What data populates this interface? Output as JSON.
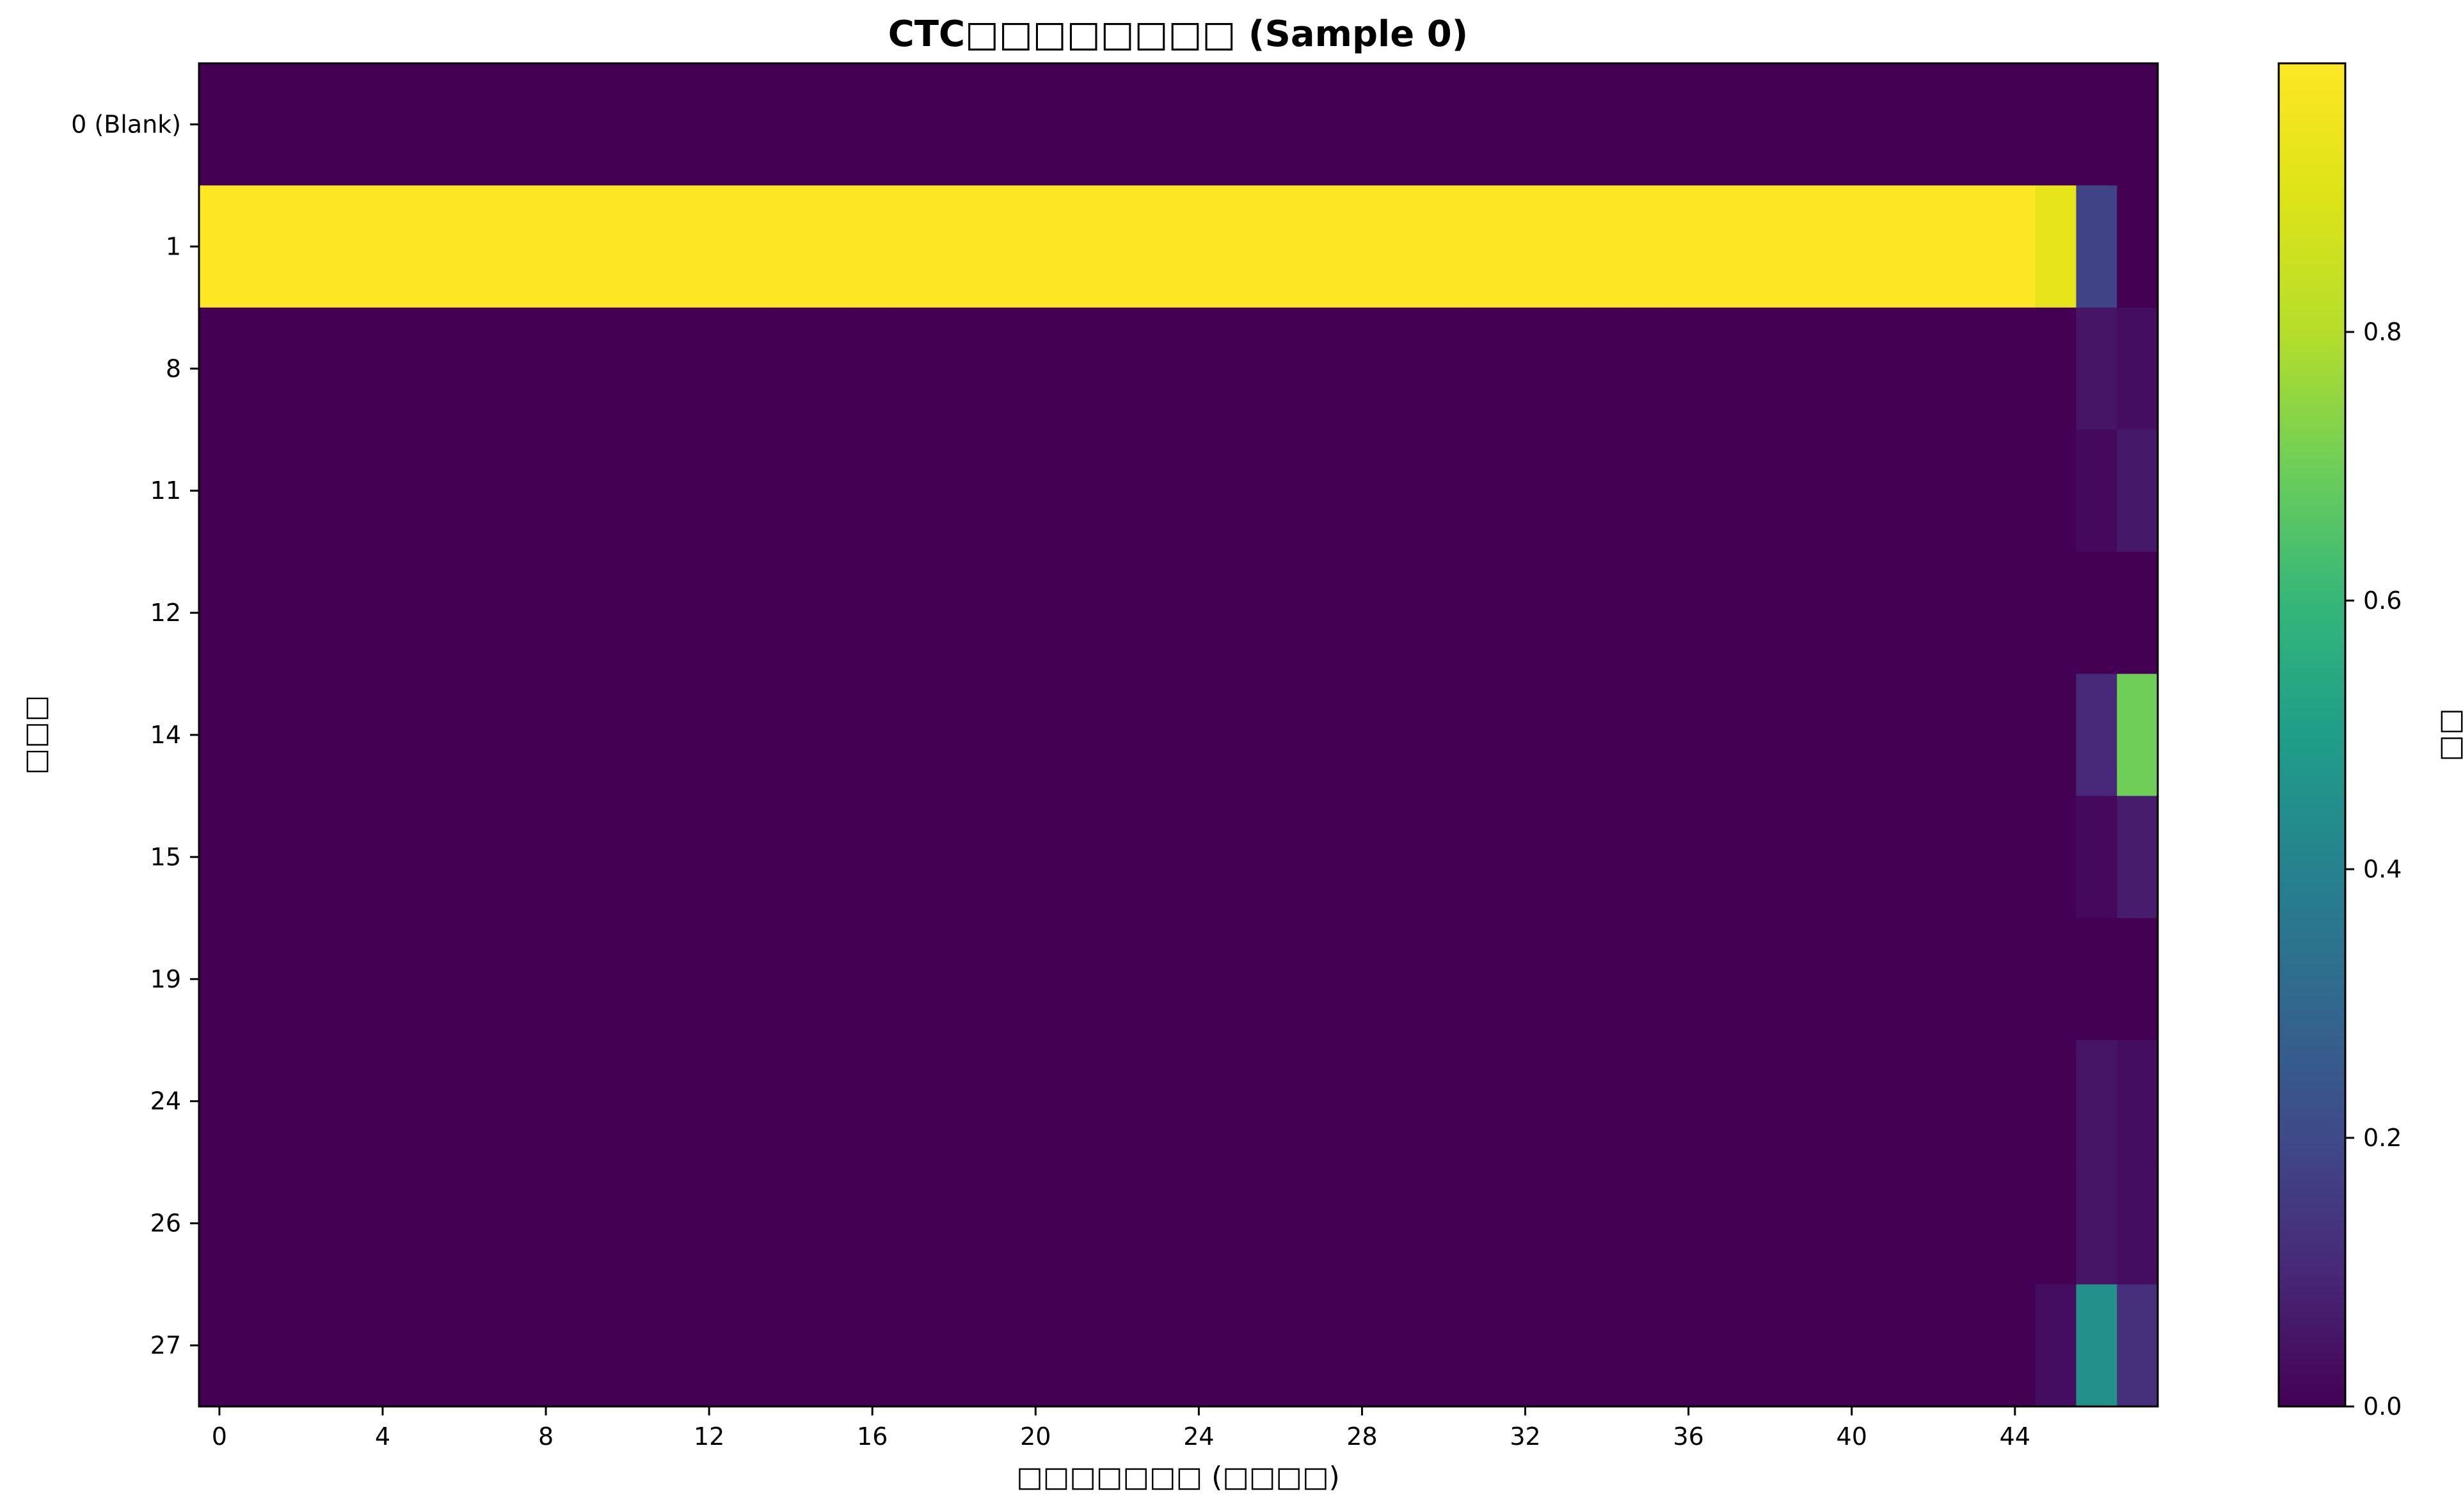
{
  "chart_data": {
    "type": "heatmap",
    "title": "CTC□□□□□□□□ (Sample 0)",
    "xlabel": "□□□□□□□ (□□□□)",
    "ylabel": "□□□",
    "colorbar_label": "□□",
    "colormap": "viridis",
    "x_tick_labels": [
      "0",
      "4",
      "8",
      "12",
      "16",
      "20",
      "24",
      "28",
      "32",
      "36",
      "40",
      "44"
    ],
    "x_tick_values": [
      0,
      4,
      8,
      12,
      16,
      20,
      24,
      28,
      32,
      36,
      40,
      44
    ],
    "x_count": 48,
    "y_labels": [
      "0 (Blank)",
      "1",
      "8",
      "11",
      "12",
      "14",
      "15",
      "19",
      "24",
      "26",
      "27"
    ],
    "colorbar_ticks": [
      0.0,
      0.2,
      0.4,
      0.6,
      0.8
    ],
    "colorbar_tick_labels": [
      "0.0",
      "0.2",
      "0.4",
      "0.6",
      "0.8"
    ],
    "vmin": 0.0,
    "vmax": 1.0,
    "default_value": 0.0,
    "row_default_values": [
      0.0,
      1.0,
      0.0,
      0.0,
      0.0,
      0.0,
      0.0,
      0.0,
      0.0,
      0.0,
      0.0
    ],
    "cells_override": [
      {
        "row": 1,
        "col": 45,
        "value": 0.93
      },
      {
        "row": 1,
        "col": 46,
        "value": 0.18
      },
      {
        "row": 1,
        "col": 47,
        "value": 0.0
      },
      {
        "row": 2,
        "col": 46,
        "value": 0.05
      },
      {
        "row": 2,
        "col": 47,
        "value": 0.03
      },
      {
        "row": 3,
        "col": 46,
        "value": 0.02
      },
      {
        "row": 3,
        "col": 47,
        "value": 0.06
      },
      {
        "row": 5,
        "col": 46,
        "value": 0.1
      },
      {
        "row": 5,
        "col": 47,
        "value": 0.7
      },
      {
        "row": 6,
        "col": 46,
        "value": 0.02
      },
      {
        "row": 6,
        "col": 47,
        "value": 0.07
      },
      {
        "row": 8,
        "col": 46,
        "value": 0.05
      },
      {
        "row": 8,
        "col": 47,
        "value": 0.03
      },
      {
        "row": 9,
        "col": 46,
        "value": 0.05
      },
      {
        "row": 9,
        "col": 47,
        "value": 0.03
      },
      {
        "row": 10,
        "col": 45,
        "value": 0.03
      },
      {
        "row": 10,
        "col": 46,
        "value": 0.45
      },
      {
        "row": 10,
        "col": 47,
        "value": 0.12
      }
    ]
  }
}
